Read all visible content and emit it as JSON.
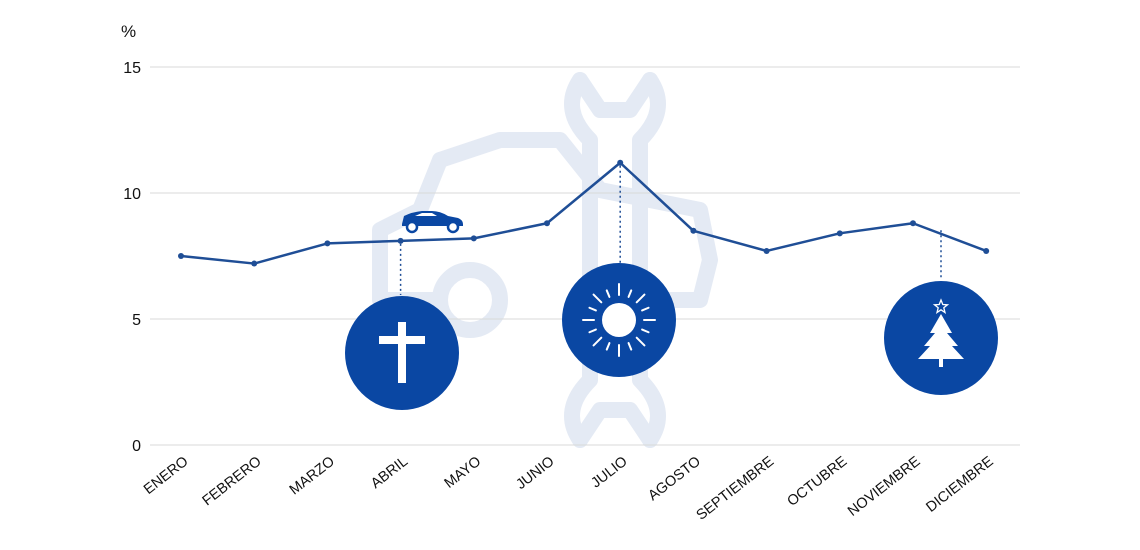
{
  "chart_data": {
    "type": "line",
    "unit_label": "%",
    "ylim": [
      0,
      15
    ],
    "yticks": [
      "0",
      "5",
      "10",
      "15"
    ],
    "categories": [
      "ENERO",
      "FEBRERO",
      "MARZO",
      "ABRIL",
      "MAYO",
      "JUNIO",
      "JULIO",
      "AGOSTO",
      "SEPTIEMBRE",
      "OCTUBRE",
      "NOVIEMBRE",
      "DICIEMBRE"
    ],
    "series": [
      {
        "values": [
          7.5,
          7.2,
          8.0,
          8.1,
          8.2,
          8.8,
          11.2,
          8.5,
          7.7,
          8.4,
          8.8,
          7.7
        ]
      }
    ],
    "grid": true,
    "line_color": "#1f4e96",
    "annotations": [
      {
        "category": "ABRIL",
        "icon": "cross-icon",
        "extra_icon": "car-icon"
      },
      {
        "category": "JULIO",
        "icon": "sun-icon"
      },
      {
        "category": "DICIEMBRE",
        "icon": "christmas-tree-icon"
      }
    ],
    "watermark_icon": "car-wrench-icon",
    "colors": {
      "accent": "#0a47a3",
      "gridline": "#d9d9d9",
      "watermark": "#e4eaf4"
    }
  }
}
